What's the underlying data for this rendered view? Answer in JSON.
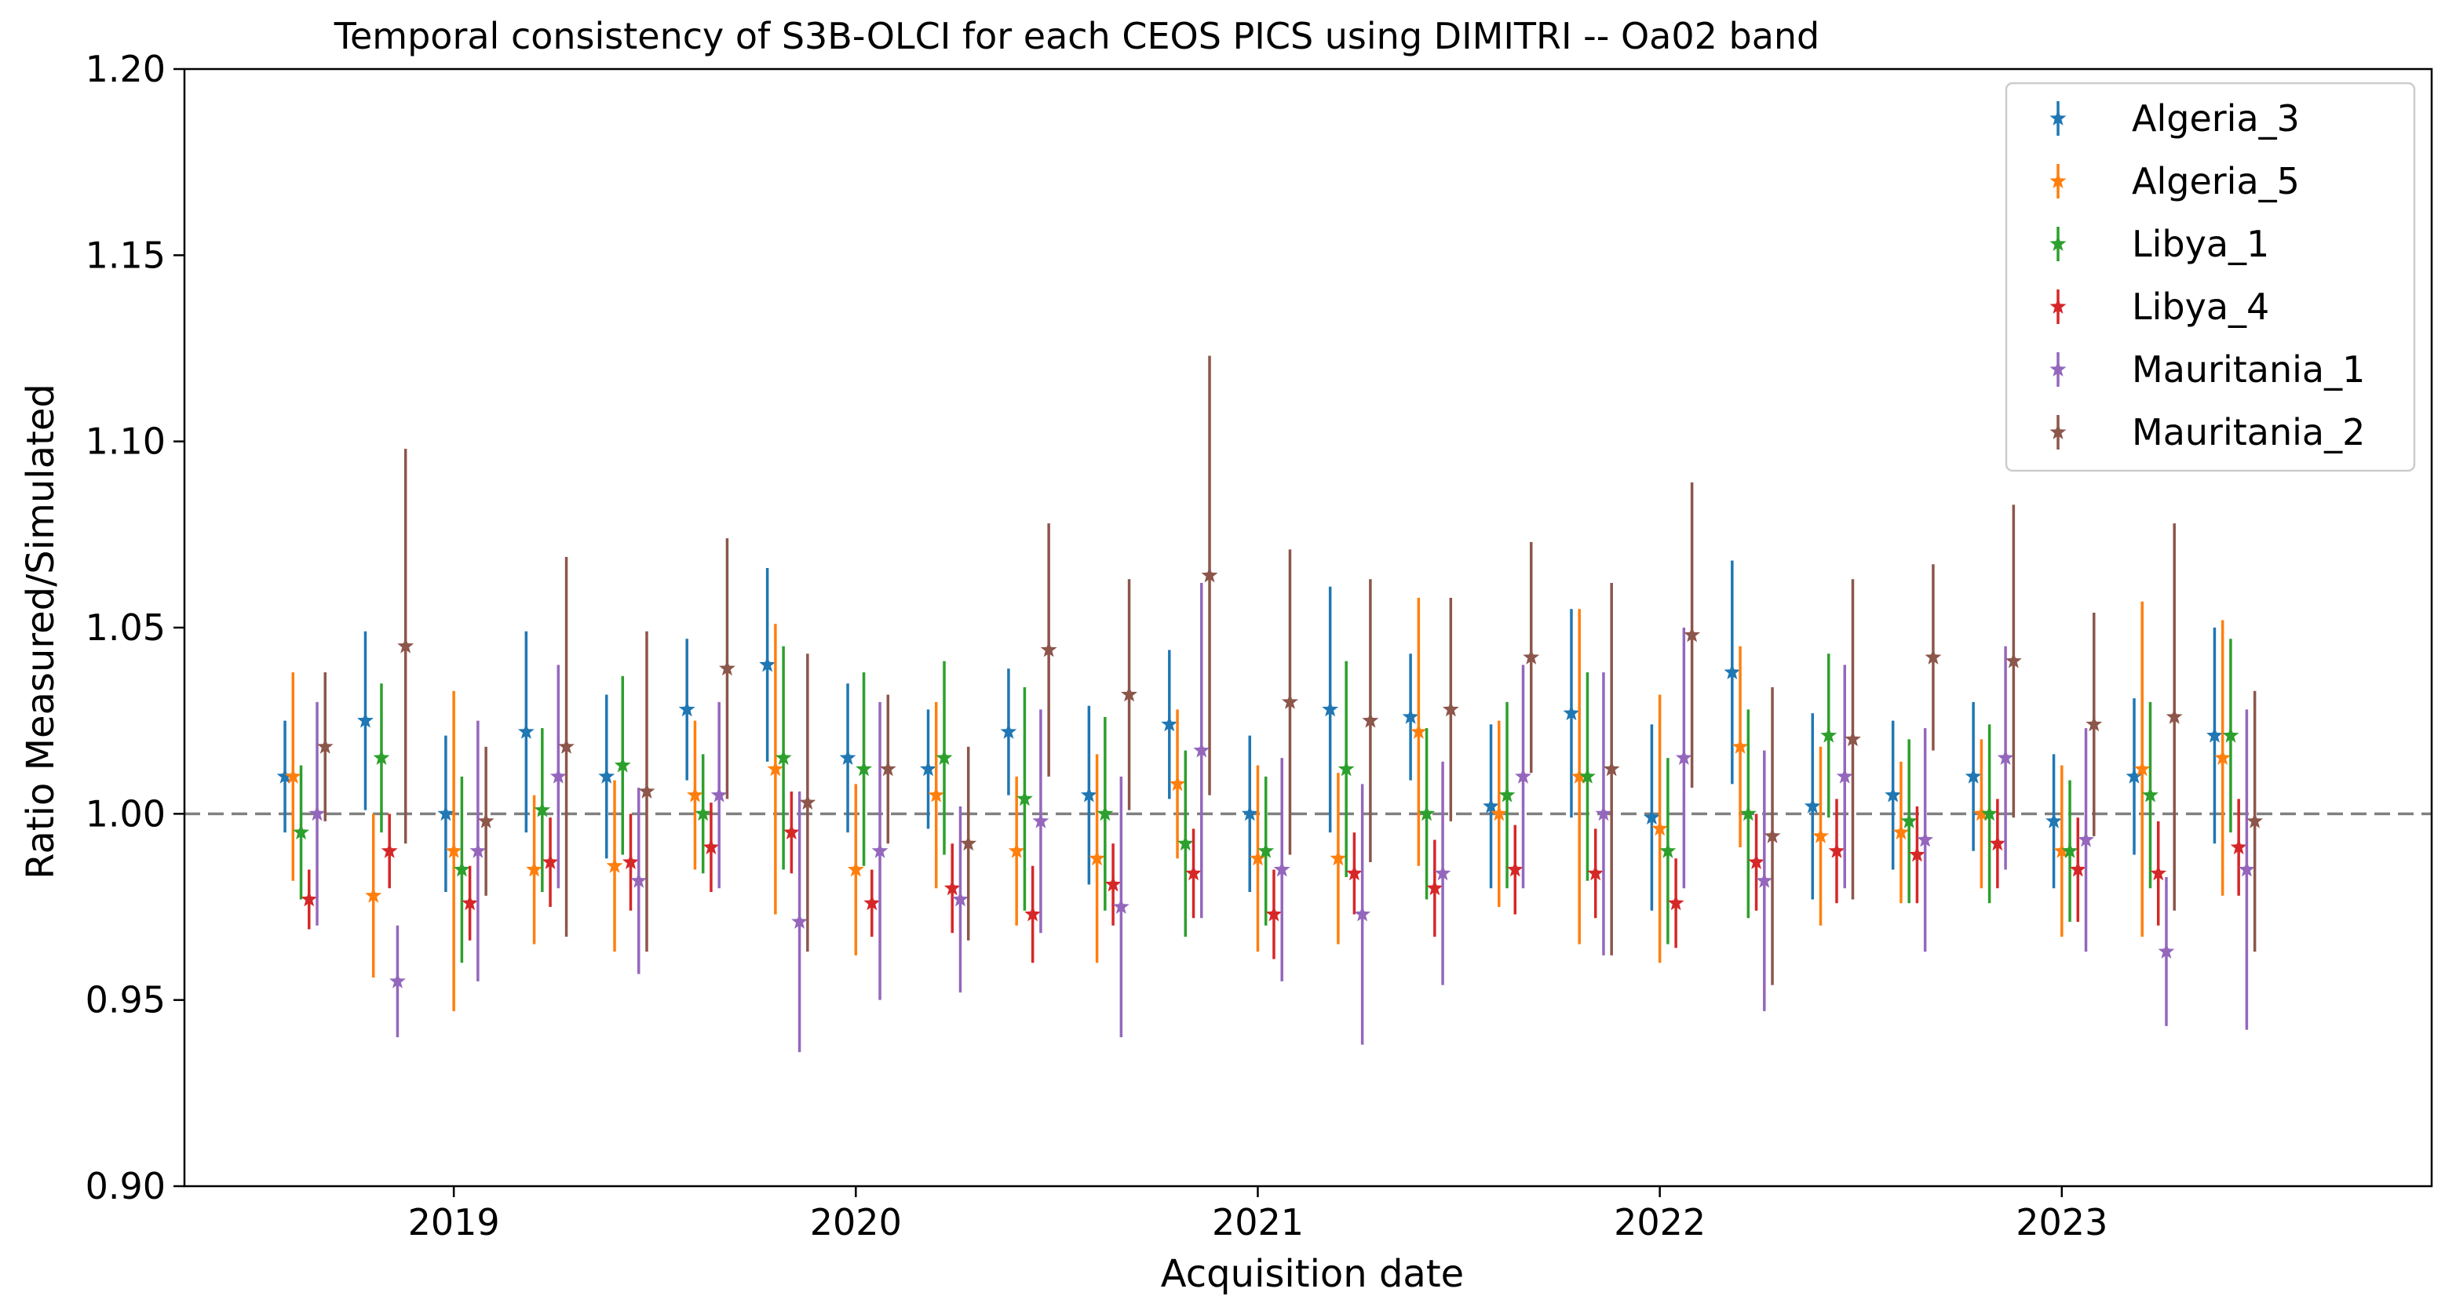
{
  "chart_data": {
    "type": "errorbar-scatter",
    "title": "Temporal consistency of S3B-OLCI for each CEOS PICS using DIMITRI -- Oa02 band",
    "xlabel": "Acquisition date",
    "ylabel": "Ratio Measured/Simulated",
    "xlim": [
      2018.33,
      2023.92
    ],
    "ylim": [
      0.9,
      1.2
    ],
    "y_ticks": [
      "0.90",
      "0.95",
      "1.00",
      "1.05",
      "1.10",
      "1.15",
      "1.20"
    ],
    "x_ticks": [
      {
        "value": 2019,
        "label": "2019"
      },
      {
        "value": 2020,
        "label": "2020"
      },
      {
        "value": 2021,
        "label": "2021"
      },
      {
        "value": 2022,
        "label": "2022"
      },
      {
        "value": 2023,
        "label": "2023"
      }
    ],
    "reference_line": 1.0,
    "legend_position": "top-right",
    "marker": "star",
    "series": [
      {
        "name": "Algeria_3",
        "color": "#1f77b4",
        "x": [
          2018.58,
          2018.78,
          2018.98,
          2019.18,
          2019.38,
          2019.58,
          2019.78,
          2019.98,
          2020.18,
          2020.38,
          2020.58,
          2020.78,
          2020.98,
          2021.18,
          2021.38,
          2021.58,
          2021.78,
          2021.98,
          2022.18,
          2022.38,
          2022.58,
          2022.78,
          2022.98,
          2023.18,
          2023.38
        ],
        "y": [
          1.01,
          1.025,
          1.0,
          1.022,
          1.01,
          1.028,
          1.04,
          1.015,
          1.012,
          1.022,
          1.005,
          1.024,
          1.0,
          1.028,
          1.026,
          1.002,
          1.027,
          0.999,
          1.038,
          1.002,
          1.005,
          1.01,
          0.998,
          1.01,
          1.021
        ],
        "err": [
          0.015,
          0.024,
          0.021,
          0.027,
          0.022,
          0.019,
          0.026,
          0.02,
          0.016,
          0.017,
          0.024,
          0.02,
          0.021,
          0.033,
          0.017,
          0.022,
          0.028,
          0.025,
          0.03,
          0.025,
          0.02,
          0.02,
          0.018,
          0.021,
          0.029
        ]
      },
      {
        "name": "Algeria_5",
        "color": "#ff7f0e",
        "x": [
          2018.6,
          2018.8,
          2019.0,
          2019.2,
          2019.4,
          2019.6,
          2019.8,
          2020.0,
          2020.2,
          2020.4,
          2020.6,
          2020.8,
          2021.0,
          2021.2,
          2021.4,
          2021.6,
          2021.8,
          2022.0,
          2022.2,
          2022.4,
          2022.6,
          2022.8,
          2023.0,
          2023.2,
          2023.4
        ],
        "y": [
          1.01,
          0.978,
          0.99,
          0.985,
          0.986,
          1.005,
          1.012,
          0.985,
          1.005,
          0.99,
          0.988,
          1.008,
          0.988,
          0.988,
          1.022,
          1.0,
          1.01,
          0.996,
          1.018,
          0.994,
          0.995,
          1.0,
          0.99,
          1.012,
          1.015
        ],
        "err": [
          0.028,
          0.022,
          0.043,
          0.02,
          0.023,
          0.02,
          0.039,
          0.023,
          0.025,
          0.02,
          0.028,
          0.02,
          0.025,
          0.023,
          0.036,
          0.025,
          0.045,
          0.036,
          0.027,
          0.024,
          0.019,
          0.02,
          0.023,
          0.045,
          0.037
        ]
      },
      {
        "name": "Libya_1",
        "color": "#2ca02c",
        "x": [
          2018.62,
          2018.82,
          2019.02,
          2019.22,
          2019.42,
          2019.62,
          2019.82,
          2020.02,
          2020.22,
          2020.42,
          2020.62,
          2020.82,
          2021.02,
          2021.22,
          2021.42,
          2021.62,
          2021.82,
          2022.02,
          2022.22,
          2022.42,
          2022.62,
          2022.82,
          2023.02,
          2023.22,
          2023.42
        ],
        "y": [
          0.995,
          1.015,
          0.985,
          1.001,
          1.013,
          1.0,
          1.015,
          1.012,
          1.015,
          1.004,
          1.0,
          0.992,
          0.99,
          1.012,
          1.0,
          1.005,
          1.01,
          0.99,
          1.0,
          1.021,
          0.998,
          1.0,
          0.99,
          1.005,
          1.021
        ],
        "err": [
          0.018,
          0.02,
          0.025,
          0.022,
          0.024,
          0.016,
          0.03,
          0.026,
          0.026,
          0.03,
          0.026,
          0.025,
          0.02,
          0.029,
          0.023,
          0.025,
          0.028,
          0.025,
          0.028,
          0.022,
          0.022,
          0.024,
          0.019,
          0.025,
          0.026
        ]
      },
      {
        "name": "Libya_4",
        "color": "#d62728",
        "x": [
          2018.64,
          2018.84,
          2019.04,
          2019.24,
          2019.44,
          2019.64,
          2019.84,
          2020.04,
          2020.24,
          2020.44,
          2020.64,
          2020.84,
          2021.04,
          2021.24,
          2021.44,
          2021.64,
          2021.84,
          2022.04,
          2022.24,
          2022.44,
          2022.64,
          2022.84,
          2023.04,
          2023.24,
          2023.44
        ],
        "y": [
          0.977,
          0.99,
          0.976,
          0.987,
          0.987,
          0.991,
          0.995,
          0.976,
          0.98,
          0.973,
          0.981,
          0.984,
          0.973,
          0.984,
          0.98,
          0.985,
          0.984,
          0.976,
          0.987,
          0.99,
          0.989,
          0.992,
          0.985,
          0.984,
          0.991
        ],
        "err": [
          0.008,
          0.01,
          0.01,
          0.012,
          0.013,
          0.012,
          0.011,
          0.009,
          0.012,
          0.013,
          0.011,
          0.012,
          0.012,
          0.011,
          0.013,
          0.012,
          0.012,
          0.012,
          0.013,
          0.014,
          0.013,
          0.012,
          0.014,
          0.014,
          0.013
        ]
      },
      {
        "name": "Mauritania_1",
        "color": "#9467bd",
        "x": [
          2018.66,
          2018.86,
          2019.06,
          2019.26,
          2019.46,
          2019.66,
          2019.86,
          2020.06,
          2020.26,
          2020.46,
          2020.66,
          2020.86,
          2021.06,
          2021.26,
          2021.46,
          2021.66,
          2021.86,
          2022.06,
          2022.26,
          2022.46,
          2022.66,
          2022.86,
          2023.06,
          2023.26,
          2023.46
        ],
        "y": [
          1.0,
          0.955,
          0.99,
          1.01,
          0.982,
          1.005,
          0.971,
          0.99,
          0.977,
          0.998,
          0.975,
          1.017,
          0.985,
          0.973,
          0.984,
          1.01,
          1.0,
          1.015,
          0.982,
          1.01,
          0.993,
          1.015,
          0.993,
          0.963,
          0.985
        ],
        "err": [
          0.03,
          0.015,
          0.035,
          0.03,
          0.025,
          0.025,
          0.035,
          0.04,
          0.025,
          0.03,
          0.035,
          0.045,
          0.03,
          0.035,
          0.03,
          0.03,
          0.038,
          0.035,
          0.035,
          0.03,
          0.03,
          0.03,
          0.03,
          0.02,
          0.043
        ]
      },
      {
        "name": "Mauritania_2",
        "color": "#8c564b",
        "x": [
          2018.68,
          2018.88,
          2019.08,
          2019.28,
          2019.48,
          2019.68,
          2019.88,
          2020.08,
          2020.28,
          2020.48,
          2020.68,
          2020.88,
          2021.08,
          2021.28,
          2021.48,
          2021.68,
          2021.88,
          2022.08,
          2022.28,
          2022.48,
          2022.68,
          2022.88,
          2023.08,
          2023.28,
          2023.48
        ],
        "y": [
          1.018,
          1.045,
          0.998,
          1.018,
          1.006,
          1.039,
          1.003,
          1.012,
          0.992,
          1.044,
          1.032,
          1.064,
          1.03,
          1.025,
          1.028,
          1.042,
          1.012,
          1.048,
          0.994,
          1.02,
          1.042,
          1.041,
          1.024,
          1.026,
          0.998
        ],
        "err": [
          0.02,
          0.053,
          0.02,
          0.051,
          0.043,
          0.035,
          0.04,
          0.02,
          0.026,
          0.034,
          0.031,
          0.059,
          0.041,
          0.038,
          0.03,
          0.031,
          0.05,
          0.041,
          0.04,
          0.043,
          0.025,
          0.042,
          0.03,
          0.052,
          0.035
        ]
      }
    ]
  }
}
